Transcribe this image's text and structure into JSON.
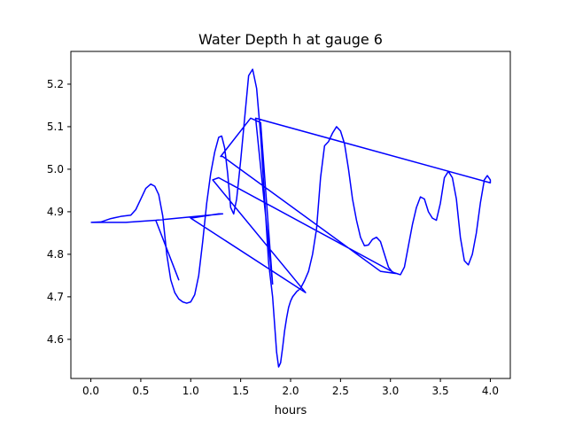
{
  "chart_data": {
    "type": "line",
    "title": "Water Depth h at gauge 6",
    "xlabel": "hours",
    "ylabel": "",
    "xlim": [
      -0.2,
      4.2
    ],
    "ylim": [
      4.508,
      5.277
    ],
    "xticks": [
      0.0,
      0.5,
      1.0,
      1.5,
      2.0,
      2.5,
      3.0,
      3.5,
      4.0
    ],
    "xtick_labels": [
      "0.0",
      "0.5",
      "1.0",
      "1.5",
      "2.0",
      "2.5",
      "3.0",
      "3.5",
      "4.0"
    ],
    "yticks": [
      4.6,
      4.7,
      4.8,
      4.9,
      5.0,
      5.1,
      5.2
    ],
    "ytick_labels": [
      "4.6",
      "4.7",
      "4.8",
      "4.9",
      "5.0",
      "5.1",
      "5.2"
    ],
    "grid": false,
    "series": [
      {
        "color": "#0000ff",
        "x": [
          0.0,
          0.1,
          0.2,
          0.3,
          0.4,
          0.45,
          0.5,
          0.55,
          0.6,
          0.64,
          0.68,
          0.72,
          0.76,
          0.8,
          0.84,
          0.88,
          0.92,
          0.96,
          1.0,
          1.04,
          1.08,
          1.12,
          1.16,
          1.2,
          1.24,
          1.28,
          1.31,
          1.34,
          1.37,
          1.4,
          1.43,
          1.46,
          1.5,
          1.54,
          1.58,
          1.62,
          1.66,
          1.7,
          1.74,
          1.78,
          1.82,
          1.86,
          1.88,
          1.9,
          1.92,
          1.94,
          1.96,
          1.98,
          2.0,
          2.02,
          2.06,
          2.1,
          2.14,
          2.18,
          2.22,
          2.26,
          2.3,
          2.34,
          2.38,
          2.42,
          2.46,
          2.5,
          2.54,
          2.58,
          2.62,
          2.66,
          2.7,
          2.74,
          2.78,
          2.82,
          2.86,
          2.9,
          2.94,
          2.98,
          3.02,
          3.06,
          3.1,
          3.14,
          3.18,
          3.22,
          3.26,
          3.3,
          3.34,
          3.38,
          3.42,
          3.46,
          3.5,
          3.54,
          3.58,
          3.62,
          3.66,
          3.7,
          3.74,
          3.78,
          3.82,
          3.86,
          3.9,
          3.94,
          3.97,
          4.0,
          4.0,
          1.65,
          1.82,
          1.7,
          1.6,
          1.3,
          1.32,
          2.9,
          3.05,
          1.28,
          1.22,
          2.15,
          1.0,
          1.28,
          1.32,
          0.65,
          0.88,
          0.65,
          0.35,
          0.0
        ],
        "y": [
          4.875,
          4.876,
          4.884,
          4.889,
          4.892,
          4.905,
          4.93,
          4.955,
          4.965,
          4.96,
          4.94,
          4.89,
          4.8,
          4.74,
          4.71,
          4.695,
          4.688,
          4.685,
          4.688,
          4.705,
          4.75,
          4.83,
          4.92,
          4.99,
          5.04,
          5.075,
          5.078,
          5.05,
          4.99,
          4.91,
          4.895,
          4.93,
          5.02,
          5.12,
          5.22,
          5.235,
          5.19,
          5.08,
          4.93,
          4.78,
          4.7,
          4.57,
          4.535,
          4.545,
          4.58,
          4.62,
          4.65,
          4.675,
          4.69,
          4.7,
          4.712,
          4.72,
          4.738,
          4.76,
          4.8,
          4.86,
          4.98,
          5.055,
          5.065,
          5.085,
          5.1,
          5.09,
          5.06,
          5.0,
          4.93,
          4.88,
          4.84,
          4.82,
          4.822,
          4.835,
          4.84,
          4.83,
          4.8,
          4.77,
          4.758,
          4.755,
          4.752,
          4.77,
          4.82,
          4.87,
          4.91,
          4.935,
          4.93,
          4.9,
          4.885,
          4.88,
          4.92,
          4.98,
          4.995,
          4.98,
          4.93,
          4.84,
          4.785,
          4.775,
          4.8,
          4.85,
          4.92,
          4.975,
          4.985,
          4.975,
          4.968,
          5.12,
          4.73,
          5.11,
          5.12,
          5.03,
          5.03,
          4.76,
          4.755,
          4.98,
          4.975,
          4.71,
          4.885,
          4.895,
          4.895,
          4.88,
          4.74,
          4.88,
          4.875,
          4.875
        ]
      }
    ]
  }
}
